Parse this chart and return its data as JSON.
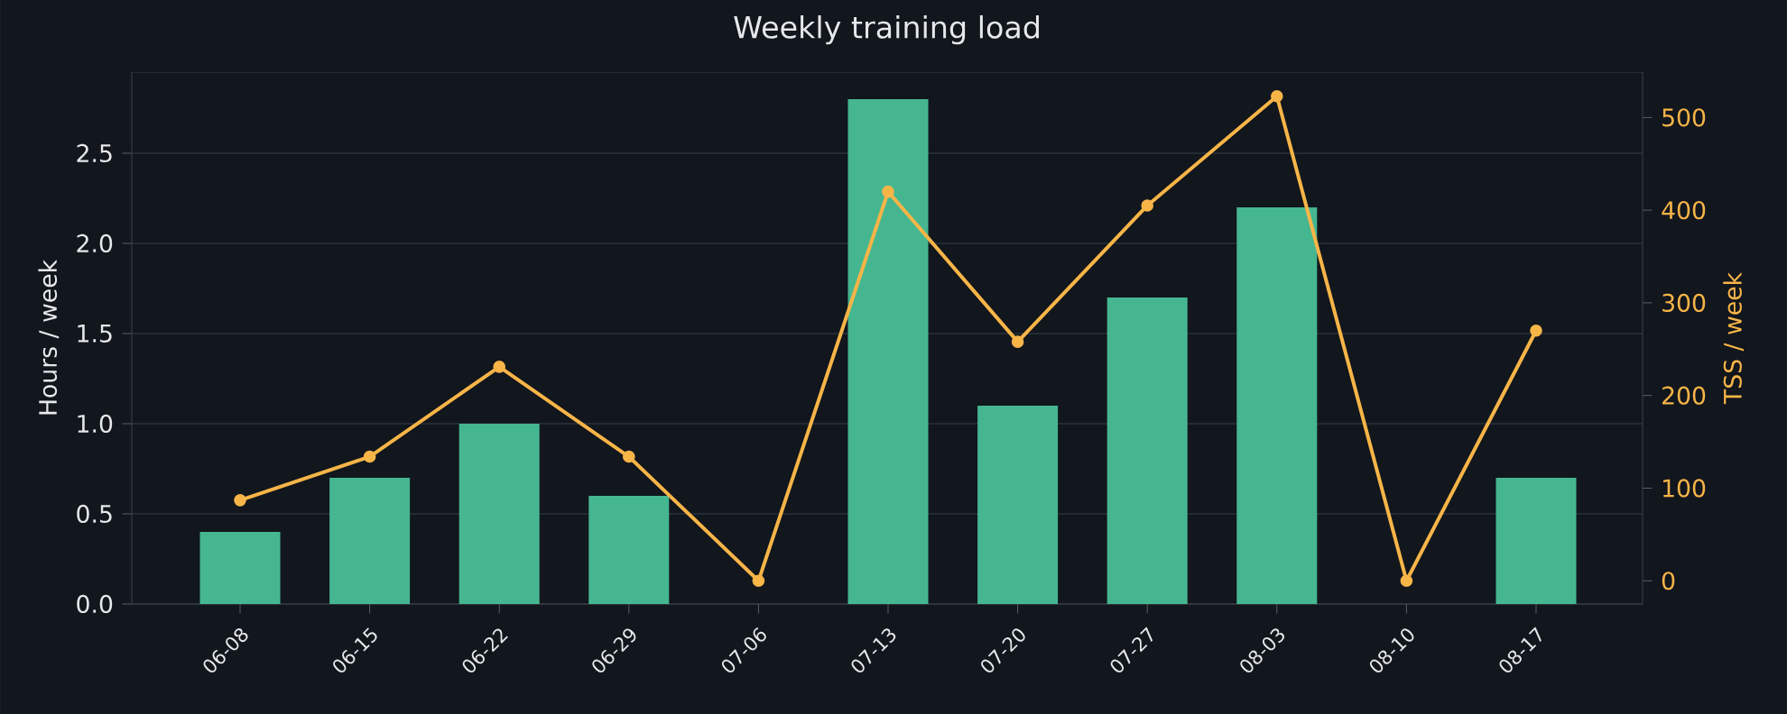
{
  "chart_data": {
    "type": "bar",
    "title": "Weekly training load",
    "ylabel": "Hours / week",
    "y2label": "TSS / week",
    "categories": [
      "06-08",
      "06-15",
      "06-22",
      "06-29",
      "07-06",
      "07-13",
      "07-20",
      "07-27",
      "08-03",
      "08-10",
      "08-17"
    ],
    "series": [
      {
        "color": "#45b690",
        "values": [
          0.4,
          0.7,
          1.0,
          0.6,
          0,
          2.8,
          1.1,
          1.7,
          2.2,
          0,
          0.7
        ]
      },
      {
        "type": "line",
        "axis": "y2",
        "color": "#f7b548",
        "marker": "circle",
        "line_style": "solid",
        "values": [
          87,
          134,
          231,
          134,
          0,
          420,
          258,
          405,
          523,
          0,
          270
        ]
      }
    ],
    "ylim": [
      0,
      2.95
    ],
    "yticks": [
      {
        "value": 0,
        "label": "0.0"
      },
      {
        "value": 0.5,
        "label": "0.5"
      },
      {
        "value": 1,
        "label": "1.0"
      },
      {
        "value": 1.5,
        "label": "1.5"
      },
      {
        "value": 2,
        "label": "2.0"
      },
      {
        "value": 2.5,
        "label": "2.5"
      }
    ],
    "y2lim": [
      -25,
      549
    ],
    "y2ticks": [
      0,
      100,
      200,
      300,
      400,
      500
    ],
    "grid": "y"
  }
}
